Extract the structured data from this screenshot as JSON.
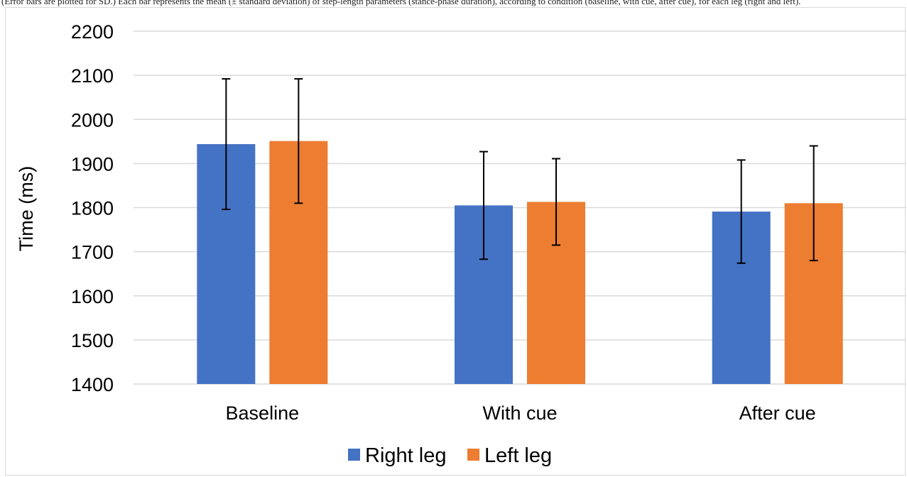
{
  "caption": "(Error bars are plotted for SD.) Each bar represents the mean (± standard deviation) of step-length parameters (stance-phase duration), according to condition (baseline, with cue, after cue), for each leg (right and left).",
  "chart_data": {
    "type": "bar",
    "categories": [
      "Baseline",
      "With cue",
      "After cue"
    ],
    "series": [
      {
        "name": "Right leg",
        "color": "#4472C4",
        "values": [
          1944,
          1805,
          1791
        ],
        "error": [
          148,
          122,
          117
        ]
      },
      {
        "name": "Left leg",
        "color": "#ED7D31",
        "values": [
          1951,
          1813,
          1810
        ],
        "error": [
          141,
          98,
          130
        ]
      }
    ],
    "title": "",
    "xlabel": "",
    "ylabel": "Time (ms)",
    "ylim": [
      1400,
      2200
    ],
    "yticks": [
      1400,
      1500,
      1600,
      1700,
      1800,
      1900,
      2000,
      2100,
      2200
    ],
    "grid": true,
    "gridline_color": "#d9d9d9",
    "legend_position": "bottom",
    "error_bars": "SD"
  }
}
